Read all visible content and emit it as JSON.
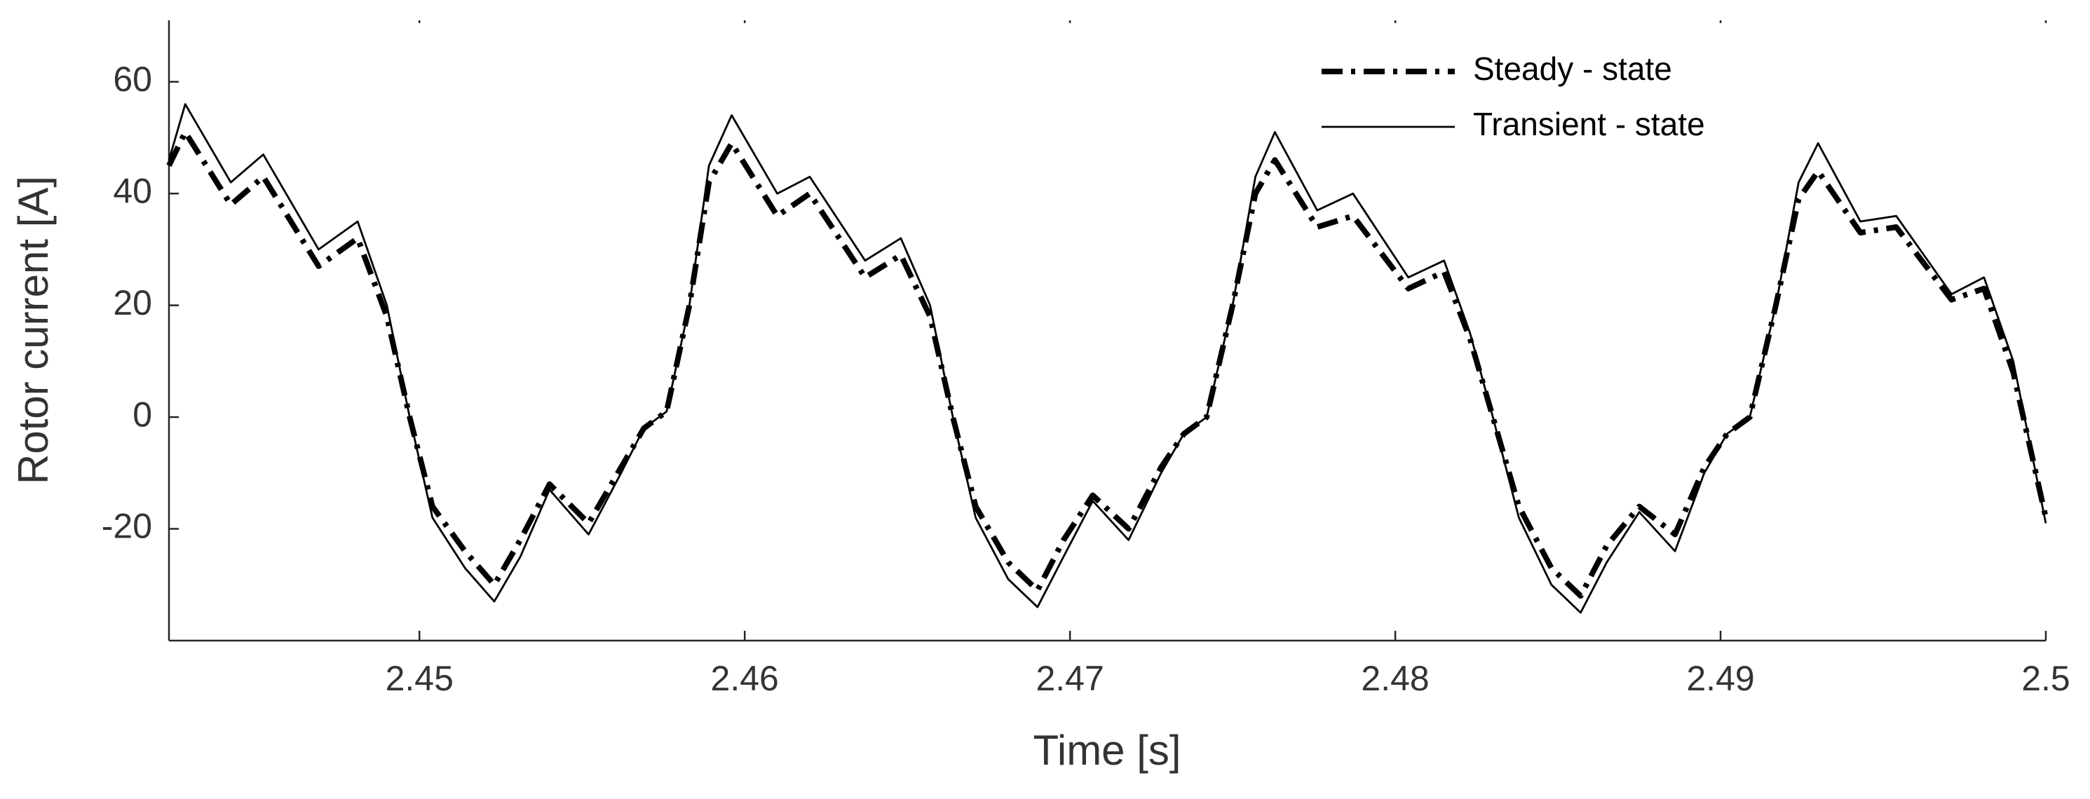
{
  "chart_data": {
    "type": "line",
    "xlabel": "Time [s]",
    "ylabel": "Rotor current [A]",
    "x": [
      2.4423,
      2.4428,
      2.4442,
      2.4452,
      2.4469,
      2.4481,
      2.449,
      2.4497,
      2.4504,
      2.4514,
      2.4523,
      2.4531,
      2.454,
      2.4552,
      2.4562,
      2.4569,
      2.4576,
      2.4583,
      2.4589,
      2.4596,
      2.461,
      2.462,
      2.4637,
      2.4648,
      2.4657,
      2.4664,
      2.4671,
      2.4681,
      2.469,
      2.4698,
      2.4707,
      2.4718,
      2.4728,
      2.4735,
      2.4742,
      2.475,
      2.4757,
      2.4763,
      2.4776,
      2.4787,
      2.4804,
      2.4815,
      2.4823,
      2.483,
      2.4838,
      2.4848,
      2.4857,
      2.4865,
      2.4875,
      2.4886,
      2.4895,
      2.4902,
      2.4909,
      2.4917,
      2.4924,
      2.493,
      2.4943,
      2.4954,
      2.4971,
      2.4981,
      2.499,
      2.5
    ],
    "series": [
      {
        "name": "Steady - state",
        "color": "#000000",
        "linestyle": "dashdot",
        "values": [
          45,
          51,
          38,
          43,
          27,
          32,
          18,
          0,
          -16,
          -24,
          -30,
          -22,
          -12,
          -19,
          -9,
          -2,
          1,
          20,
          42,
          49,
          36,
          40,
          25,
          29,
          18,
          0,
          -16,
          -26,
          -31,
          -22,
          -14,
          -20,
          -9,
          -3,
          0,
          20,
          40,
          46,
          34,
          36,
          23,
          26,
          14,
          0,
          -16,
          -27,
          -32,
          -23,
          -16,
          -21,
          -9,
          -3,
          0,
          20,
          39,
          44,
          33,
          34,
          21,
          23,
          8,
          -18
        ]
      },
      {
        "name": "Transient - state",
        "color": "#000000",
        "linestyle": "solid",
        "values": [
          46,
          56,
          42,
          47,
          30,
          35,
          20,
          0,
          -18,
          -27,
          -33,
          -25,
          -13,
          -21,
          -10,
          -2,
          1,
          20,
          45,
          54,
          40,
          43,
          28,
          32,
          20,
          0,
          -18,
          -29,
          -34,
          -25,
          -15,
          -22,
          -10,
          -3,
          0,
          20,
          43,
          51,
          37,
          40,
          25,
          28,
          15,
          0,
          -18,
          -30,
          -35,
          -26,
          -17,
          -24,
          -10,
          -3,
          0,
          20,
          42,
          49,
          35,
          36,
          22,
          25,
          10,
          -19
        ]
      }
    ],
    "xlim": [
      2.4423,
      2.5
    ],
    "ylim": [
      -40,
      71
    ],
    "xticks": [
      2.45,
      2.46,
      2.47,
      2.48,
      2.49,
      2.5
    ],
    "yticks": [
      -20,
      0,
      20,
      40,
      60
    ],
    "legend": "upper right",
    "grid": false
  }
}
